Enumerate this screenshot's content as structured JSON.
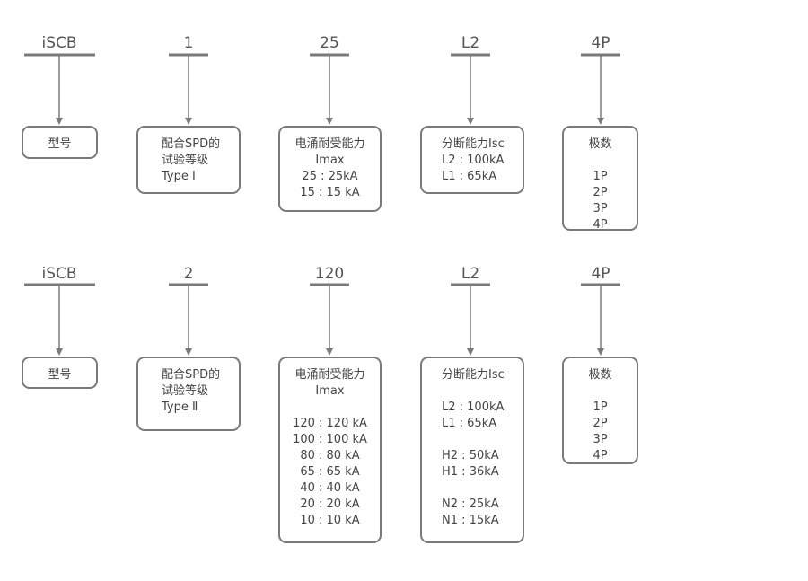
{
  "rows": [
    {
      "codes": [
        "iSCB",
        "1",
        "25",
        "L2",
        "4P"
      ],
      "boxes": [
        {
          "lines": [
            "型号"
          ]
        },
        {
          "lines": [
            "配合SPD的",
            "试验等级",
            "Type Ⅰ"
          ]
        },
        {
          "lines": [
            "电涌耐受能力",
            "Imax",
            "25 : 25kA",
            "15 : 15 kA"
          ]
        },
        {
          "lines": [
            "分断能力Isc",
            "L2 : 100kA",
            "L1 : 65kA"
          ]
        },
        {
          "lines": [
            "极数",
            "",
            "1P",
            "2P",
            "3P",
            "4P"
          ]
        }
      ]
    },
    {
      "codes": [
        "iSCB",
        "2",
        "120",
        "L2",
        "4P"
      ],
      "boxes": [
        {
          "lines": [
            "型号"
          ]
        },
        {
          "lines": [
            "配合SPD的",
            "试验等级",
            "Type Ⅱ"
          ]
        },
        {
          "lines": [
            "电涌耐受能力",
            "Imax",
            "",
            "120 : 120 kA",
            "100 : 100 kA",
            "80 : 80 kA",
            "65 : 65 kA",
            "40 : 40 kA",
            "20 : 20 kA",
            "10 : 10 kA"
          ]
        },
        {
          "lines": [
            "分断能力Isc",
            "",
            "L2 : 100kA",
            "L1 : 65kA",
            "",
            "H2 : 50kA",
            "H1 : 36kA",
            "",
            "N2 : 25kA",
            "N1 : 15kA"
          ]
        },
        {
          "lines": [
            "极数",
            "",
            "1P",
            "2P",
            "3P",
            "4P"
          ]
        }
      ]
    }
  ],
  "colors": {
    "line": "#7a7a7a",
    "text": "#444444"
  }
}
